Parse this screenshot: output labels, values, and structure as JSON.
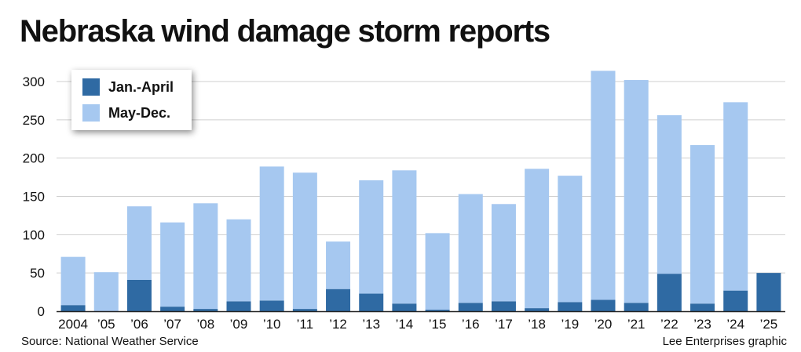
{
  "title": "Nebraska wind damage storm reports",
  "source": "Source: National Weather Service",
  "credit": "Lee Enterprises graphic",
  "colors": {
    "jan_april": "#2f6aa3",
    "may_dec": "#a6c8f0",
    "grid": "#cfcfcf"
  },
  "chart_data": {
    "type": "bar",
    "stacked": true,
    "categories": [
      "2004",
      "’05",
      "’06",
      "’07",
      "’08",
      "’09",
      "’10",
      "’11",
      "’12",
      "’13",
      "’14",
      "’15",
      "’16",
      "’17",
      "’18",
      "’19",
      "’20",
      "’21",
      "’22",
      "’23",
      "’24",
      "’25"
    ],
    "series": [
      {
        "name": "Jan.-April",
        "color": "#2f6aa3",
        "values": [
          8,
          0,
          41,
          6,
          3,
          13,
          14,
          3,
          29,
          23,
          10,
          2,
          11,
          13,
          4,
          12,
          15,
          11,
          49,
          10,
          27,
          50
        ]
      },
      {
        "name": "May-Dec.",
        "color": "#a6c8f0",
        "values": [
          63,
          51,
          96,
          110,
          138,
          107,
          175,
          178,
          62,
          148,
          174,
          100,
          142,
          127,
          182,
          165,
          299,
          291,
          207,
          207,
          246,
          0
        ]
      }
    ],
    "ylim": [
      0,
      300
    ],
    "yticks": [
      0,
      50,
      100,
      150,
      200,
      250,
      300
    ],
    "grid": true,
    "legend": "top-left"
  }
}
